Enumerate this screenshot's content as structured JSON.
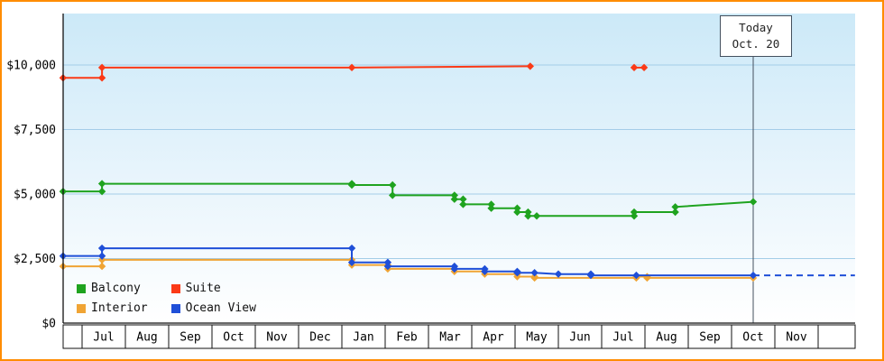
{
  "window": {
    "border_color": "#ff8c00",
    "background_color": "#ffffff"
  },
  "legend": {
    "items": [
      {
        "label": "Balcony",
        "color": "#1fa31f"
      },
      {
        "label": "Suite",
        "color": "#fb3a17"
      },
      {
        "label": "Interior",
        "color": "#f0a434"
      },
      {
        "label": "Ocean View",
        "color": "#1f4fd8"
      }
    ]
  },
  "chart_data": {
    "type": "line",
    "title": "",
    "xlabel": "",
    "ylabel": "",
    "grid": true,
    "legend_position": "bottom-left-inside",
    "y_axis": {
      "range": [
        0,
        10000
      ],
      "ticks": [
        {
          "v": 0,
          "label": "$0"
        },
        {
          "v": 2500,
          "label": "$2,500"
        },
        {
          "v": 5000,
          "label": "$5,000"
        },
        {
          "v": 7500,
          "label": "$7,500"
        },
        {
          "v": 10000,
          "label": "$10,000"
        }
      ]
    },
    "x_axis": {
      "months": [
        "Jul",
        "Aug",
        "Sep",
        "Oct",
        "Nov",
        "Dec",
        "Jan",
        "Feb",
        "Mar",
        "Apr",
        "May",
        "Jun",
        "Jul",
        "Aug",
        "Sep",
        "Oct",
        "Nov"
      ]
    },
    "annotations": {
      "today": {
        "line1": "Today",
        "line2": "Oct. 20",
        "month_position": 15.5
      }
    },
    "series": [
      {
        "name": "Interior",
        "color": "#f0a434",
        "segments": [
          {
            "points": [
              [
                -0.44,
                2200
              ],
              [
                0.46,
                2200
              ],
              [
                0.46,
                2450
              ],
              [
                6.23,
                2450
              ],
              [
                6.23,
                2250
              ],
              [
                7.06,
                2250
              ],
              [
                7.06,
                2100
              ],
              [
                8.6,
                2100
              ],
              [
                8.6,
                2000
              ],
              [
                9.3,
                2000
              ],
              [
                9.3,
                1900
              ],
              [
                10.05,
                1900
              ],
              [
                10.05,
                1800
              ],
              [
                10.45,
                1800
              ],
              [
                10.45,
                1750
              ],
              [
                12.8,
                1750
              ],
              [
                12.8,
                1800
              ],
              [
                13.05,
                1800
              ],
              [
                13.05,
                1750
              ],
              [
                15.5,
                1750
              ]
            ]
          }
        ]
      },
      {
        "name": "Ocean View",
        "color": "#1f4fd8",
        "segments": [
          {
            "points": [
              [
                -0.44,
                2600
              ],
              [
                0.46,
                2600
              ],
              [
                0.46,
                2900
              ],
              [
                6.23,
                2900
              ],
              [
                6.23,
                2350
              ],
              [
                7.06,
                2350
              ],
              [
                7.06,
                2200
              ],
              [
                8.6,
                2200
              ],
              [
                8.6,
                2100
              ],
              [
                9.3,
                2100
              ],
              [
                9.3,
                2000
              ],
              [
                10.05,
                2000
              ],
              [
                10.05,
                1950
              ],
              [
                10.45,
                1950
              ],
              [
                11.0,
                1900
              ],
              [
                11.75,
                1900
              ],
              [
                11.75,
                1850
              ],
              [
                12.8,
                1850
              ],
              [
                15.5,
                1850
              ]
            ]
          },
          {
            "points": [
              [
                15.5,
                1850
              ],
              [
                17.85,
                1850
              ]
            ],
            "dashed": true,
            "markers": false
          }
        ]
      },
      {
        "name": "Balcony",
        "color": "#1fa31f",
        "segments": [
          {
            "points": [
              [
                -0.44,
                5100
              ],
              [
                0.46,
                5100
              ],
              [
                0.46,
                5400
              ],
              [
                6.23,
                5400
              ],
              [
                6.23,
                5350
              ],
              [
                7.17,
                5350
              ],
              [
                7.17,
                4950
              ],
              [
                8.6,
                4950
              ],
              [
                8.6,
                4800
              ],
              [
                8.8,
                4800
              ],
              [
                8.8,
                4600
              ],
              [
                9.45,
                4600
              ],
              [
                9.45,
                4450
              ],
              [
                10.05,
                4450
              ],
              [
                10.05,
                4300
              ],
              [
                10.3,
                4300
              ],
              [
                10.3,
                4150
              ],
              [
                10.5,
                4150
              ],
              [
                12.75,
                4150
              ],
              [
                12.75,
                4300
              ],
              [
                13.7,
                4300
              ],
              [
                13.7,
                4500
              ],
              [
                15.5,
                4700
              ]
            ]
          }
        ]
      },
      {
        "name": "Suite",
        "color": "#fb3a17",
        "segments": [
          {
            "points": [
              [
                -0.44,
                9500
              ],
              [
                0.46,
                9500
              ],
              [
                0.46,
                9900
              ],
              [
                6.23,
                9900
              ],
              [
                10.35,
                9950
              ]
            ]
          },
          {
            "points": [
              [
                12.75,
                9900
              ],
              [
                12.98,
                9900
              ]
            ]
          }
        ]
      }
    ]
  }
}
